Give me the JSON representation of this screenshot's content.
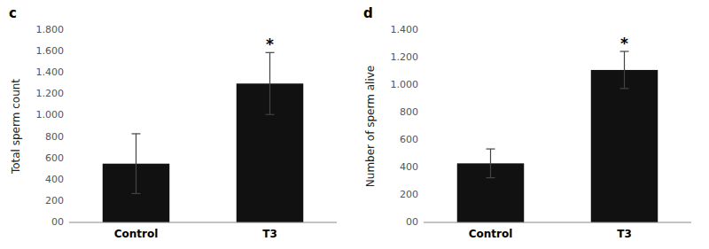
{
  "chart_data": [
    {
      "type": "bar",
      "title": "c",
      "categories": [
        "Control",
        "T3"
      ],
      "values": [
        550,
        1300
      ],
      "errors": [
        280,
        290
      ],
      "ylabel": "Total sperm count",
      "ylim": [
        0,
        1800
      ],
      "yticks": [
        {
          "value": 0,
          "label": "00"
        },
        200,
        400,
        600,
        800,
        {
          "value": 1000,
          "label": "1.000"
        },
        {
          "value": 1200,
          "label": "1.200"
        },
        {
          "value": 1400,
          "label": "1.400"
        },
        {
          "value": 1600,
          "label": "1.600"
        },
        {
          "value": 1800,
          "label": "1.800"
        }
      ],
      "color": "#111111",
      "grid": false,
      "annotations": [
        {
          "category": "T3",
          "text": "*"
        }
      ]
    },
    {
      "type": "bar",
      "title": "d",
      "categories": [
        "Control",
        "T3"
      ],
      "values": [
        430,
        1110
      ],
      "errors": [
        105,
        135
      ],
      "ylabel": "Number of sperm alive",
      "ylim": [
        0,
        1400
      ],
      "yticks": [
        {
          "value": 0,
          "label": "00"
        },
        200,
        400,
        600,
        800,
        {
          "value": 1000,
          "label": "1.000"
        },
        {
          "value": 1200,
          "label": "1.200"
        },
        {
          "value": 1400,
          "label": "1.400"
        }
      ],
      "color": "#111111",
      "grid": false,
      "annotations": [
        {
          "category": "T3",
          "text": "*"
        }
      ]
    }
  ]
}
